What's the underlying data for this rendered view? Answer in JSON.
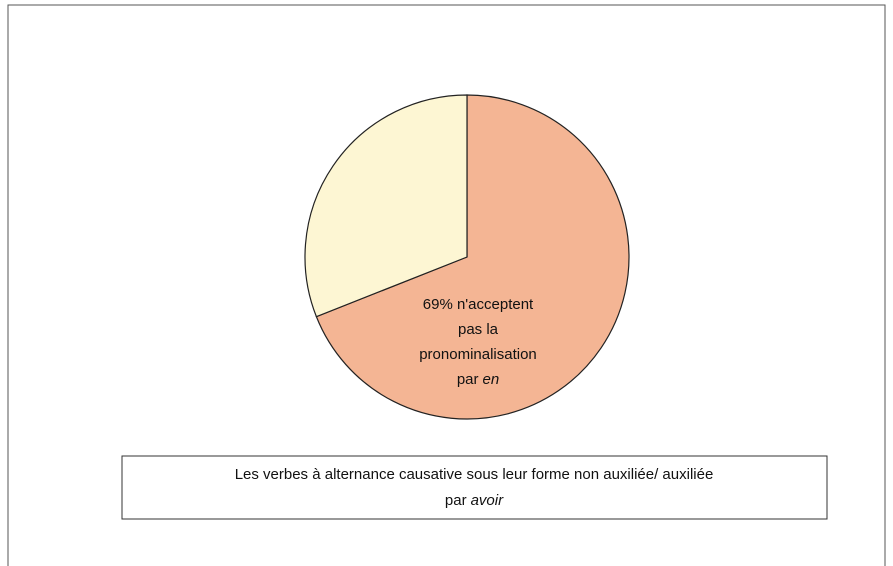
{
  "chart_data": {
    "type": "pie",
    "title": [
      "Les verbes à alternance causative sous leur forme non auxiliée/ auxiliée",
      "par",
      "avoir"
    ],
    "categories": [
      null,
      null
    ],
    "values": [
      69,
      31
    ],
    "value_labels": [
      [
        "69% n'acceptent",
        "pas la",
        "pronominalisation",
        "par",
        "en"
      ],
      null
    ],
    "colors": [
      "#f4b594",
      "#fdf6d3"
    ]
  }
}
